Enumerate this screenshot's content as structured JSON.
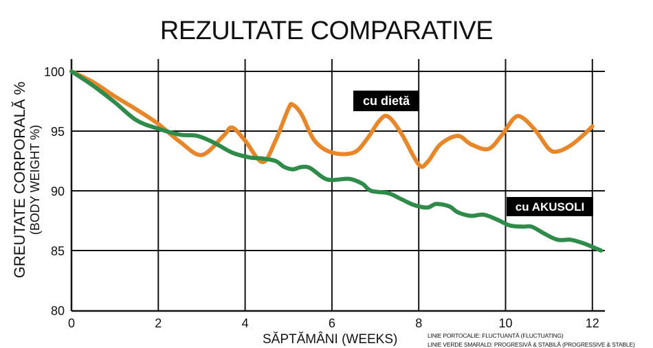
{
  "chart_data": {
    "type": "line",
    "title": "REZULTATE COMPARATIVE",
    "xlabel": "SĂPTĂMÂNI (WEEKS)",
    "ylabel": "GREUTATE CORPORALĂ %",
    "ylabel_sub": "(BODY WEIGHT %)",
    "xlim": [
      0,
      12.2
    ],
    "ylim": [
      80,
      100.5
    ],
    "xticks": [
      0,
      2,
      4,
      6,
      8,
      10,
      12
    ],
    "yticks": [
      80,
      85,
      90,
      95,
      100
    ],
    "grid": true,
    "series": [
      {
        "name": "cu dietă",
        "color": "#E8862A",
        "x": [
          0,
          0.5,
          1,
          1.5,
          2,
          2.5,
          3,
          3.5,
          3.7,
          4,
          4.4,
          4.7,
          5,
          5.1,
          5.3,
          5.6,
          6,
          6.5,
          6.8,
          7.1,
          7.3,
          7.6,
          8,
          8.2,
          8.5,
          8.9,
          9.2,
          9.6,
          9.9,
          10.2,
          10.4,
          10.7,
          11,
          11.2,
          11.5,
          11.8,
          12
        ],
        "values": [
          100,
          99.1,
          97.9,
          96.8,
          95.6,
          94.1,
          93.0,
          94.6,
          95.3,
          94.2,
          92.4,
          94.2,
          96.9,
          97.2,
          96.4,
          94.2,
          93.2,
          93.2,
          94.3,
          95.9,
          96.2,
          94.8,
          92.2,
          92.4,
          93.9,
          94.6,
          93.9,
          93.5,
          94.6,
          96.1,
          96.1,
          95.0,
          93.5,
          93.3,
          93.8,
          94.7,
          95.4
        ]
      },
      {
        "name": "cu AKUSOLI",
        "color": "#2E8B4A",
        "x": [
          0,
          0.5,
          1,
          1.5,
          2,
          2.5,
          2.9,
          3.3,
          3.7,
          4.1,
          4.4,
          4.7,
          4.9,
          5.1,
          5.3,
          5.5,
          5.8,
          6,
          6.4,
          6.7,
          6.9,
          7.3,
          7.6,
          7.9,
          8.2,
          8.4,
          8.7,
          8.9,
          9.2,
          9.5,
          9.8,
          10.1,
          10.4,
          10.6,
          10.9,
          11.2,
          11.5,
          11.8,
          12.2
        ],
        "values": [
          100,
          98.8,
          97.4,
          95.9,
          95.2,
          94.7,
          94.6,
          94.0,
          93.2,
          92.8,
          92.7,
          92.5,
          92.0,
          91.8,
          92.0,
          91.9,
          91.1,
          90.9,
          91.0,
          90.6,
          90.0,
          89.8,
          89.3,
          88.8,
          88.6,
          88.9,
          88.7,
          88.2,
          87.9,
          88.0,
          87.6,
          87.1,
          87.0,
          87.0,
          86.4,
          85.9,
          85.9,
          85.6,
          85.0
        ]
      }
    ],
    "annotations": [
      {
        "text": "cu dietă",
        "series": 0
      },
      {
        "text": "cu AKUSOLI",
        "series": 1
      }
    ],
    "notes": [
      "LINIE PORTOCALIE: FLUCTUANTĂ (FLUCTUATING)",
      "LINIE VERDE SMARALD: PROGRESIVĂ & STABILĂ (PROGRESSIVE & STABLE)"
    ]
  }
}
